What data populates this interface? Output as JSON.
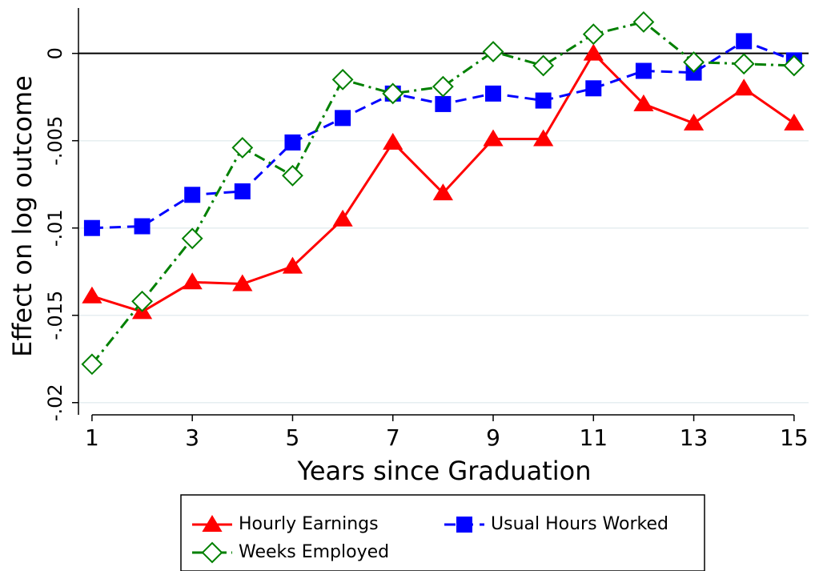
{
  "chart_data": {
    "type": "line",
    "x_label": "Years since Graduation",
    "y_label": "Effect on log outcome",
    "x": [
      1,
      2,
      3,
      4,
      5,
      6,
      7,
      8,
      9,
      10,
      11,
      12,
      13,
      14,
      15
    ],
    "xlim": [
      0.73,
      15.29
    ],
    "xticks": [
      1,
      3,
      5,
      7,
      9,
      11,
      13,
      15
    ],
    "ylim": [
      -0.0207,
      0.0026
    ],
    "yticks": [
      0,
      {
        "value": -0.005,
        "label": "-.005"
      },
      {
        "value": -0.01,
        "label": "-.01"
      },
      {
        "value": -0.015,
        "label": "-.015"
      },
      {
        "value": -0.02,
        "label": "-.02"
      }
    ],
    "grid": true,
    "reference_line": 0,
    "series": [
      {
        "name": "Hourly Earnings",
        "color": "#ff0000",
        "line_style": "solid",
        "marker": "triangle",
        "values": [
          -0.0139,
          -0.0148,
          -0.0131,
          -0.0132,
          -0.0122,
          -0.0095,
          -0.0051,
          -0.008,
          -0.0049,
          -0.0049,
          0,
          -0.0029,
          -0.004,
          -0.002,
          -0.004
        ]
      },
      {
        "name": "Usual Hours Worked",
        "color": "#0000ff",
        "line_style": "dashed",
        "marker": "square",
        "values": [
          -0.01,
          -0.0099,
          -0.0081,
          -0.0079,
          -0.0051,
          -0.0037,
          -0.0023,
          -0.0029,
          -0.0023,
          -0.0027,
          -0.002,
          -0.001,
          -0.0011,
          0.0007,
          -0.0004
        ]
      },
      {
        "name": "Weeks Employed",
        "color": "#008000",
        "line_style": "dashdot",
        "marker": "diamond-open",
        "values": [
          -0.0178,
          -0.0142,
          -0.0106,
          -0.0054,
          -0.007,
          -0.0015,
          -0.0023,
          -0.0019,
          0.0001,
          -0.0007,
          0.0011,
          0.0018,
          -0.0005,
          -0.0006,
          -0.0007
        ]
      }
    ]
  }
}
